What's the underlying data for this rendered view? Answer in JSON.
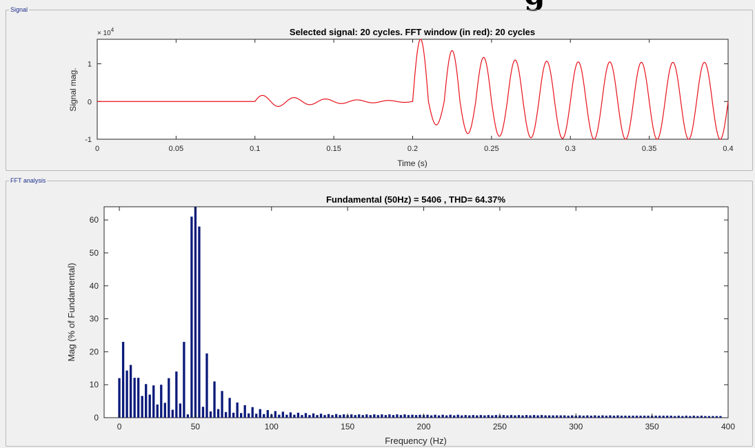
{
  "header_fragment": "g",
  "panels": {
    "signal_label": "Signal",
    "fft_label": "FFT analysis"
  },
  "colors": {
    "signal_line": "#e8101a",
    "fft_bars": "#0b1a7a",
    "panel_label": "#1a2e8c"
  },
  "chart_data": [
    {
      "type": "line",
      "title": "Selected signal: 20 cycles. FFT window (in red): 20 cycles",
      "xlabel": "Time (s)",
      "ylabel": "Signal mag.",
      "y_exponent_label": "× 10",
      "y_exponent_power": "4",
      "xlim": [
        0,
        0.4
      ],
      "ylim": [
        -1.0,
        1.65
      ],
      "x_ticks": [
        "0",
        "0.05",
        "0.1",
        "0.15",
        "0.2",
        "0.25",
        "0.3",
        "0.35",
        "0.4"
      ],
      "y_ticks": [
        "-1",
        "0",
        "1"
      ],
      "grid": false,
      "segments": [
        {
          "t_start": 0,
          "t_end": 0.1,
          "note": "flat",
          "amplitude": 0
        },
        {
          "t_start": 0.1,
          "t_end": 0.2,
          "amplitude": 0.18,
          "decay": 22,
          "freq_hz": 50
        },
        {
          "t_start": 0.2,
          "t_end": 0.4,
          "freq_hz": 50,
          "peaks": [
            1.65,
            1.35,
            1.17,
            1.1,
            1.07,
            1.05,
            1.05,
            1.04,
            1.04,
            1.04
          ],
          "troughs": [
            -0.62,
            -0.85,
            -0.92,
            -0.96,
            -0.98,
            -1.0,
            -1.0,
            -1.0,
            -1.0,
            -1.0
          ]
        }
      ]
    },
    {
      "type": "bar",
      "title": "Fundamental (50Hz) = 5406 , THD= 64.37%",
      "xlabel": "Frequency (Hz)",
      "ylabel": "Mag (% of Fundamental)",
      "xlim": [
        -10,
        400
      ],
      "ylim": [
        0,
        64
      ],
      "x_ticks": [
        "0",
        "50",
        "100",
        "150",
        "200",
        "250",
        "300",
        "350",
        "400"
      ],
      "y_ticks": [
        "0",
        "10",
        "20",
        "30",
        "40",
        "50",
        "60"
      ],
      "grid": false,
      "bin_spacing_hz": 2.5,
      "values": [
        12,
        23,
        14.3,
        16,
        12.1,
        12.1,
        6.6,
        10.2,
        7,
        9.8,
        4,
        10,
        4.5,
        12,
        2.4,
        14,
        4.3,
        23,
        1,
        61,
        64,
        58,
        3.3,
        19.5,
        1.9,
        11,
        2.6,
        8.1,
        1.7,
        6,
        1.5,
        4.6,
        1.4,
        3.8,
        1.3,
        3.2,
        1.2,
        2.6,
        1.1,
        2.3,
        1,
        2,
        0.9,
        1.8,
        0.9,
        1.6,
        0.9,
        1.5,
        0.8,
        1.4,
        0.8,
        1.3,
        0.8,
        1.2,
        0.8,
        1.1,
        0.8,
        1.1,
        0.8,
        1,
        0.8,
        1,
        0.8,
        1,
        0.8,
        1,
        0.8,
        1,
        0.8,
        1,
        0.8,
        1,
        0.8,
        1,
        0.8,
        1,
        0.8,
        0.9,
        0.8,
        0.9,
        0.8,
        0.9,
        0.7,
        0.9,
        0.7,
        0.9,
        0.7,
        0.9,
        0.7,
        0.9,
        0.7,
        0.8,
        0.7,
        0.8,
        0.7,
        0.8,
        0.7,
        0.8,
        0.7,
        0.8,
        0.7,
        0.8,
        0.7,
        0.8,
        0.7,
        0.8,
        0.7,
        0.8,
        0.7,
        0.8,
        0.7,
        0.8,
        0.7,
        0.7,
        0.7,
        0.7,
        0.7,
        0.7,
        0.6,
        0.7,
        0.6,
        0.7,
        0.6,
        0.7,
        0.6,
        0.7,
        0.6,
        0.7,
        0.6,
        0.7,
        0.6,
        0.7,
        0.6,
        0.6,
        0.6,
        0.6,
        0.6,
        0.6,
        0.6,
        0.6,
        0.6,
        0.6,
        0.6,
        0.6,
        0.6,
        0.6,
        0.5,
        0.6,
        0.5,
        0.6,
        0.5,
        0.6,
        0.5,
        0.6,
        0.5,
        0.5,
        0.5,
        0.5,
        0.5
      ]
    }
  ]
}
